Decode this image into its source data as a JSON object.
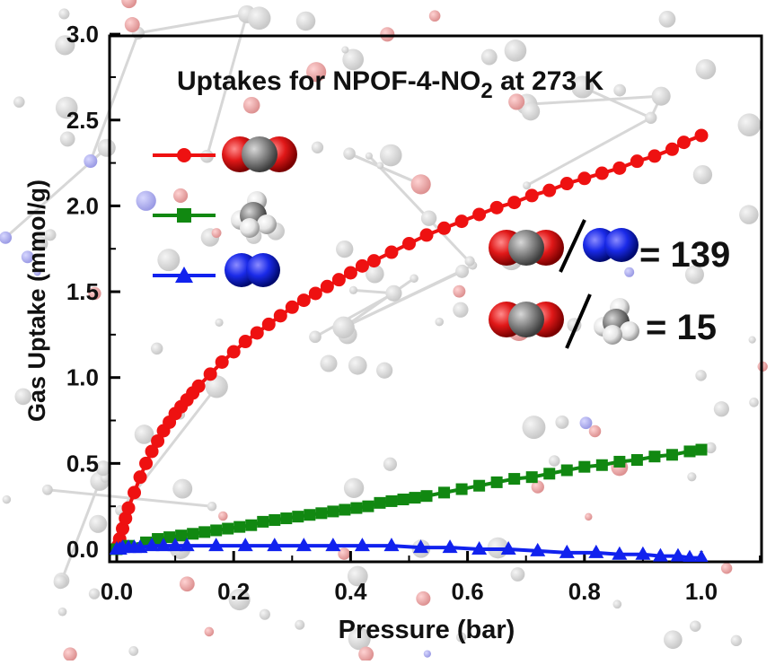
{
  "chart_data": {
    "type": "scatter",
    "title_main": "Uptakes for NPOF-4-NO",
    "title_sub": "2",
    "title_tail": " at 273 K",
    "xlabel": "Pressure (bar)",
    "ylabel": "Gas Uptake (mmol/g)",
    "xlim": [
      -0.02,
      1.1
    ],
    "ylim": [
      -0.08,
      3.0
    ],
    "xticks": [
      "0.0",
      "0.2",
      "0.4",
      "0.6",
      "0.8",
      "1.0"
    ],
    "yticks": [
      "0.0",
      "0.5",
      "1.0",
      "1.5",
      "2.0",
      "2.5",
      "3.0"
    ],
    "series": [
      {
        "gas": "CO2",
        "color": "#ee1111",
        "marker": "circle",
        "x": [
          0.002,
          0.005,
          0.01,
          0.015,
          0.02,
          0.03,
          0.04,
          0.05,
          0.06,
          0.07,
          0.08,
          0.09,
          0.1,
          0.11,
          0.12,
          0.13,
          0.14,
          0.16,
          0.18,
          0.2,
          0.22,
          0.24,
          0.26,
          0.28,
          0.3,
          0.32,
          0.34,
          0.36,
          0.38,
          0.4,
          0.42,
          0.44,
          0.47,
          0.5,
          0.53,
          0.56,
          0.59,
          0.62,
          0.65,
          0.68,
          0.71,
          0.74,
          0.77,
          0.8,
          0.83,
          0.86,
          0.89,
          0.92,
          0.95,
          0.97,
          1.0
        ],
        "y": [
          0.02,
          0.06,
          0.12,
          0.18,
          0.24,
          0.33,
          0.42,
          0.5,
          0.57,
          0.63,
          0.69,
          0.74,
          0.79,
          0.83,
          0.87,
          0.91,
          0.95,
          1.02,
          1.09,
          1.15,
          1.21,
          1.26,
          1.31,
          1.36,
          1.41,
          1.45,
          1.49,
          1.53,
          1.57,
          1.61,
          1.65,
          1.68,
          1.73,
          1.78,
          1.83,
          1.87,
          1.91,
          1.95,
          1.99,
          2.02,
          2.06,
          2.09,
          2.13,
          2.16,
          2.19,
          2.22,
          2.26,
          2.29,
          2.33,
          2.37,
          2.41
        ]
      },
      {
        "gas": "CH4",
        "color": "#118811",
        "marker": "square",
        "x": [
          0.0,
          0.02,
          0.05,
          0.07,
          0.09,
          0.11,
          0.13,
          0.15,
          0.17,
          0.19,
          0.21,
          0.23,
          0.25,
          0.27,
          0.29,
          0.31,
          0.33,
          0.35,
          0.37,
          0.39,
          0.41,
          0.43,
          0.45,
          0.47,
          0.49,
          0.51,
          0.53,
          0.56,
          0.59,
          0.62,
          0.65,
          0.68,
          0.71,
          0.74,
          0.77,
          0.8,
          0.83,
          0.86,
          0.89,
          0.92,
          0.95,
          0.98,
          1.0
        ],
        "y": [
          0.0,
          0.02,
          0.04,
          0.06,
          0.07,
          0.08,
          0.09,
          0.1,
          0.11,
          0.12,
          0.13,
          0.14,
          0.16,
          0.17,
          0.18,
          0.19,
          0.2,
          0.21,
          0.22,
          0.23,
          0.24,
          0.25,
          0.27,
          0.28,
          0.29,
          0.3,
          0.31,
          0.33,
          0.35,
          0.37,
          0.39,
          0.41,
          0.42,
          0.44,
          0.46,
          0.48,
          0.49,
          0.51,
          0.52,
          0.54,
          0.55,
          0.57,
          0.58
        ]
      },
      {
        "gas": "N2",
        "color": "#1122ee",
        "marker": "triangle",
        "x": [
          0.0,
          0.005,
          0.01,
          0.02,
          0.03,
          0.04,
          0.06,
          0.08,
          0.1,
          0.12,
          0.17,
          0.22,
          0.27,
          0.32,
          0.37,
          0.42,
          0.47,
          0.52,
          0.57,
          0.62,
          0.67,
          0.72,
          0.77,
          0.82,
          0.86,
          0.9,
          0.93,
          0.96,
          0.98,
          1.0
        ],
        "y": [
          0.0,
          0.0,
          0.01,
          0.01,
          0.01,
          0.01,
          0.02,
          0.02,
          0.02,
          0.02,
          0.02,
          0.02,
          0.02,
          0.02,
          0.02,
          0.02,
          0.02,
          0.01,
          0.01,
          0.0,
          0.0,
          -0.01,
          -0.02,
          -0.02,
          -0.03,
          -0.03,
          -0.04,
          -0.04,
          -0.05,
          -0.05
        ]
      }
    ],
    "selectivity": [
      {
        "label": "= 139"
      },
      {
        "label": "= 15"
      }
    ]
  }
}
